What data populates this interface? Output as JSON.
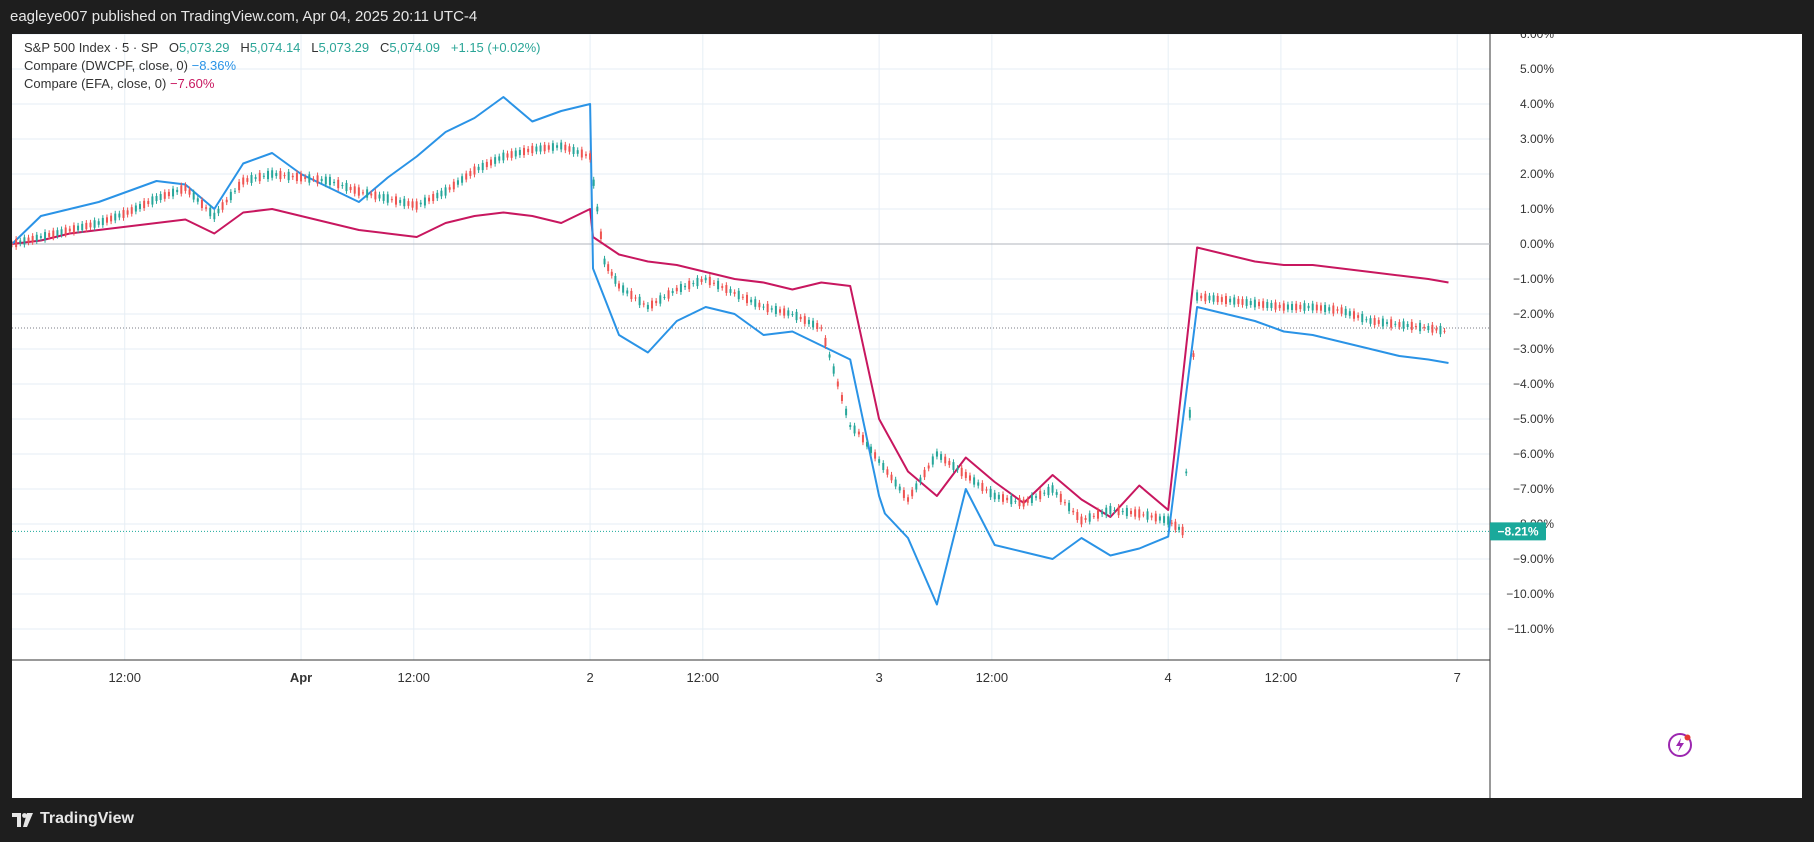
{
  "header": {
    "published": "eagleye007 published on TradingView.com, Apr 04, 2025 20:11 UTC-4"
  },
  "footer": {
    "brand": "TradingView"
  },
  "legend": {
    "main": {
      "name": "S&P 500 Index · 5 · SP",
      "o_label": "O",
      "o": "5,073.29",
      "h_label": "H",
      "h": "5,074.14",
      "l_label": "L",
      "l": "5,073.29",
      "c_label": "C",
      "c": "5,074.09",
      "change": "+1.15 (+0.02%)"
    },
    "cmp1": {
      "name": "Compare (DWCPF, close, 0)",
      "value": "−8.36%"
    },
    "cmp2": {
      "name": "Compare (EFA, close, 0)",
      "value": "−7.60%"
    }
  },
  "badge": {
    "label": "−8.21%"
  },
  "colors": {
    "sp500_up": "#26a69a",
    "sp500_down": "#ef5350",
    "dwcpf": "#2a93e6",
    "efa": "#c8175f",
    "badge": "#1aa99b",
    "grid": "#e6eef5"
  },
  "chart_data": {
    "type": "line",
    "x_ticks": [
      "12:00",
      "Apr",
      "12:00",
      "2",
      "12:00",
      "3",
      "12:00",
      "4",
      "12:00",
      "7"
    ],
    "y_ticks": [
      "6.00%",
      "5.00%",
      "4.00%",
      "3.00%",
      "2.00%",
      "1.00%",
      "0.00%",
      "−1.00%",
      "−2.00%",
      "−3.00%",
      "−4.00%",
      "−5.00%",
      "−6.00%",
      "−7.00%",
      "−8.00%",
      "−9.00%",
      "−10.00%",
      "−11.00%"
    ],
    "ylim": [
      -11.5,
      6.3
    ],
    "x_range": [
      0,
      5.02
    ],
    "series": [
      {
        "name": "S&P 500 Index",
        "style": "candles",
        "x": [
          0,
          0.1,
          0.2,
          0.3,
          0.4,
          0.5,
          0.6,
          0.7,
          0.8,
          0.9,
          1.0,
          1.1,
          1.2,
          1.3,
          1.4,
          1.5,
          1.6,
          1.7,
          1.8,
          1.9,
          2.0,
          2.05,
          2.1,
          2.2,
          2.3,
          2.4,
          2.5,
          2.6,
          2.7,
          2.8,
          2.9,
          2.93,
          3.0,
          3.1,
          3.2,
          3.3,
          3.4,
          3.5,
          3.6,
          3.7,
          3.8,
          3.9,
          4.0,
          4.05,
          4.1,
          4.2,
          4.3,
          4.4,
          4.5,
          4.6,
          4.7,
          4.8,
          4.9,
          4.97
        ],
        "y": [
          0,
          0.2,
          0.4,
          0.6,
          0.9,
          1.3,
          1.6,
          0.8,
          1.8,
          2.0,
          1.9,
          1.8,
          1.5,
          1.3,
          1.1,
          1.5,
          2.1,
          2.5,
          2.7,
          2.8,
          2.5,
          -0.5,
          -1.2,
          -1.8,
          -1.3,
          -1.0,
          -1.4,
          -1.8,
          -2.0,
          -2.4,
          -5.2,
          -5.4,
          -6.2,
          -7.3,
          -6.0,
          -6.6,
          -7.2,
          -7.4,
          -7.0,
          -7.9,
          -7.6,
          -7.7,
          -7.9,
          -8.2,
          -1.5,
          -1.6,
          -1.7,
          -1.8,
          -1.8,
          -1.9,
          -2.2,
          -2.3,
          -2.4,
          -2.5
        ]
      },
      {
        "name": "DWCPF",
        "x": [
          0,
          0.1,
          0.2,
          0.3,
          0.4,
          0.5,
          0.6,
          0.7,
          0.8,
          0.9,
          1.0,
          1.1,
          1.2,
          1.3,
          1.4,
          1.5,
          1.6,
          1.7,
          1.8,
          1.9,
          2.0,
          2.01,
          2.1,
          2.2,
          2.3,
          2.4,
          2.5,
          2.6,
          2.7,
          2.8,
          2.9,
          3.0,
          3.02,
          3.1,
          3.2,
          3.3,
          3.4,
          3.5,
          3.6,
          3.7,
          3.8,
          3.9,
          4.0,
          4.1,
          4.2,
          4.3,
          4.4,
          4.5,
          4.6,
          4.7,
          4.8,
          4.9,
          4.97
        ],
        "y": [
          0,
          0.8,
          1.0,
          1.2,
          1.5,
          1.8,
          1.7,
          1.0,
          2.3,
          2.6,
          2.0,
          1.6,
          1.2,
          1.9,
          2.5,
          3.2,
          3.6,
          4.2,
          3.5,
          3.8,
          4.0,
          -0.7,
          -2.6,
          -3.1,
          -2.2,
          -1.8,
          -2.0,
          -2.6,
          -2.5,
          -2.9,
          -3.3,
          -7.2,
          -7.7,
          -8.4,
          -10.3,
          -7.0,
          -8.6,
          -8.8,
          -9.0,
          -8.4,
          -8.9,
          -8.7,
          -8.36,
          -1.8,
          -2.0,
          -2.2,
          -2.5,
          -2.6,
          -2.8,
          -3.0,
          -3.2,
          -3.3,
          -3.4
        ]
      },
      {
        "name": "EFA",
        "x": [
          0,
          0.1,
          0.2,
          0.3,
          0.4,
          0.5,
          0.6,
          0.7,
          0.8,
          0.9,
          1.0,
          1.1,
          1.2,
          1.3,
          1.4,
          1.5,
          1.6,
          1.7,
          1.8,
          1.9,
          2.0,
          2.01,
          2.1,
          2.2,
          2.3,
          2.4,
          2.5,
          2.6,
          2.7,
          2.8,
          2.9,
          3.0,
          3.1,
          3.2,
          3.3,
          3.4,
          3.5,
          3.6,
          3.7,
          3.8,
          3.9,
          4.0,
          4.1,
          4.2,
          4.3,
          4.4,
          4.5,
          4.6,
          4.7,
          4.8,
          4.9,
          4.97
        ],
        "y": [
          0,
          0.1,
          0.3,
          0.4,
          0.5,
          0.6,
          0.7,
          0.3,
          0.9,
          1.0,
          0.8,
          0.6,
          0.4,
          0.3,
          0.2,
          0.6,
          0.8,
          0.9,
          0.8,
          0.6,
          1.0,
          0.2,
          -0.3,
          -0.5,
          -0.6,
          -0.8,
          -1.0,
          -1.1,
          -1.3,
          -1.1,
          -1.2,
          -5.0,
          -6.5,
          -7.2,
          -6.1,
          -6.8,
          -7.4,
          -6.6,
          -7.3,
          -7.8,
          -6.9,
          -7.6,
          -0.1,
          -0.3,
          -0.5,
          -0.6,
          -0.6,
          -0.7,
          -0.8,
          -0.9,
          -1.0,
          -1.1
        ]
      }
    ],
    "last_value_line": -8.21,
    "prev_close_line": -2.4
  }
}
